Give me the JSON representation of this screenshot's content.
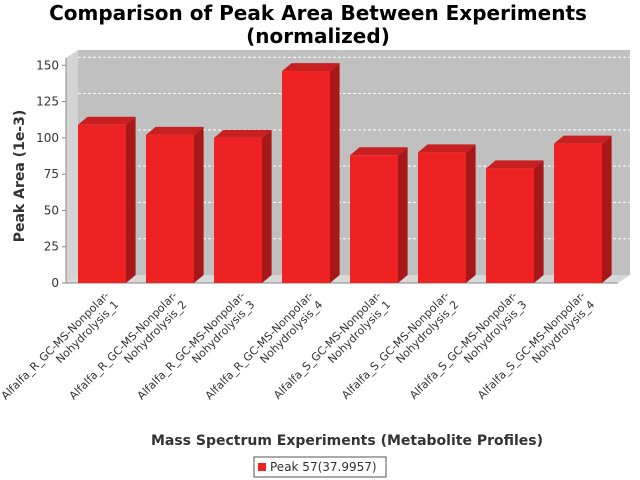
{
  "chart_data": {
    "type": "bar",
    "title_line1": "Comparison of Peak Area Between Experiments",
    "title_line2": "(normalized)",
    "xlabel": "Mass Spectrum Experiments (Metabolite Profiles)",
    "ylabel": "Peak Area (1e-3)",
    "ylim": [
      0,
      155
    ],
    "yticks": [
      "0",
      "25",
      "50",
      "75",
      "100",
      "125",
      "150"
    ],
    "grid": true,
    "legend_placement": "bottom-center",
    "categories": [
      [
        "Alfalfa_R_GC-MS-Nonpolar-",
        "Nohydrolysis_1"
      ],
      [
        "Alfalfa_R_GC-MS-Nonpolar-",
        "Nohydrolysis_2"
      ],
      [
        "Alfalfa_R_GC-MS-Nonpolar-",
        "Nohydrolysis_3"
      ],
      [
        "Alfalfa_R_GC-MS-Nonpolar-",
        "Nohydrolysis_4"
      ],
      [
        "Alfalfa_S_GC-MS-Nonpolar-",
        "Nohydrolysis_1"
      ],
      [
        "Alfalfa_S_GC-MS-Nonpolar-",
        "Nohydrolysis_2"
      ],
      [
        "Alfalfa_S_GC-MS-Nonpolar-",
        "Nohydrolysis_3"
      ],
      [
        "Alfalfa_S_GC-MS-Nonpolar-",
        "Nohydrolysis_4"
      ]
    ],
    "series": [
      {
        "name": "Peak 57(37.9957)",
        "color": "#ee2222",
        "values": [
          109,
          102,
          100,
          146,
          88,
          90,
          79,
          96
        ]
      }
    ],
    "colors": {
      "plot_back": "#c0c0c0",
      "plot_side": "#d4d4d4",
      "plot_floor": "#d8d8d8",
      "bar_front": "#ee2222",
      "bar_top": "#c82020",
      "bar_side": "#a81818",
      "grid": "#ffffff"
    }
  }
}
